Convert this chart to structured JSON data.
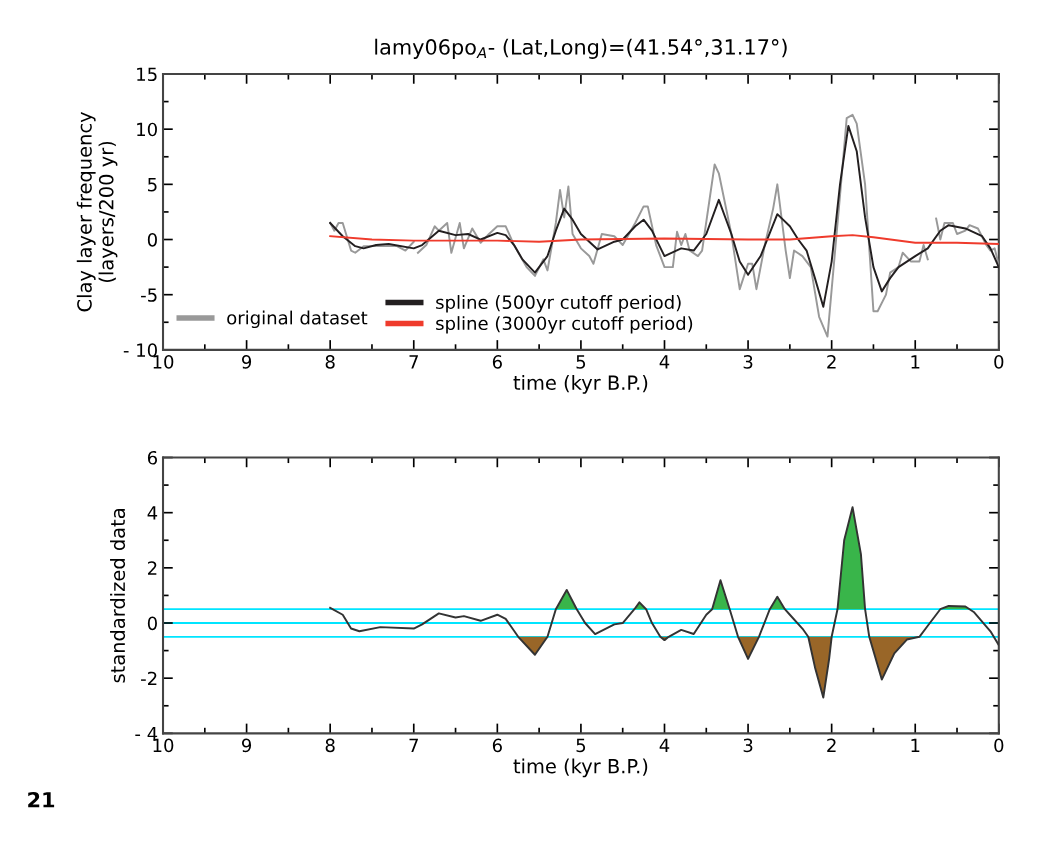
{
  "chart_data": [
    {
      "type": "line",
      "title": "lamy06po$_{A}$- (Lat,Long)=(41.54°,31.17°)",
      "xlabel": "time (kyr B.P.)",
      "ylabel": "Clay layer frequency\n(layers/200 yr)",
      "xlim": [
        10,
        0
      ],
      "xticks": [
        10,
        9,
        8,
        7,
        6,
        5,
        4,
        3,
        2,
        1,
        0,
        {
          "value": 9.5,
          "label": null
        },
        {
          "value": 8.5,
          "label": null
        },
        {
          "value": 7.5,
          "label": null
        },
        {
          "value": 6.5,
          "label": null
        },
        {
          "value": 5.5,
          "label": null
        },
        {
          "value": 4.5,
          "label": null
        },
        {
          "value": 3.5,
          "label": null
        },
        {
          "value": 2.5,
          "label": null
        },
        {
          "value": 1.5,
          "label": null
        },
        {
          "value": 0.5,
          "label": null
        }
      ],
      "ylim": [
        -10,
        15
      ],
      "yticks": [
        {
          "value": -10,
          "label": "- 10"
        },
        -5,
        0,
        5,
        10,
        15,
        {
          "value": -7.5,
          "label": null
        },
        {
          "value": -2.5,
          "label": null
        },
        {
          "value": 2.5,
          "label": null
        },
        {
          "value": 7.5,
          "label": null
        },
        {
          "value": 12.5,
          "label": null
        }
      ],
      "grid": false,
      "legend": "bottom left",
      "series": [
        {
          "name": "original dataset",
          "color": "#999999",
          "x": [
            8.0,
            7.95,
            7.9,
            7.85,
            7.75,
            7.7,
            7.6,
            7.4,
            7.2,
            7.1,
            7.0,
            6.97,
            6.95,
            6.85,
            6.75,
            6.7,
            6.6,
            6.55,
            6.45,
            6.4,
            6.3,
            6.2,
            6.1,
            6.0,
            5.9,
            5.8,
            5.65,
            5.55,
            5.45,
            5.4,
            5.3,
            5.25,
            5.2,
            5.15,
            5.1,
            5.0,
            4.9,
            4.85,
            4.75,
            4.6,
            4.5,
            4.35,
            4.25,
            4.2,
            4.1,
            4.0,
            3.9,
            3.85,
            3.8,
            3.75,
            3.7,
            3.6,
            3.55,
            3.4,
            3.35,
            3.2,
            3.1,
            3.0,
            2.95,
            2.9,
            2.8,
            2.7,
            2.65,
            2.55,
            2.5,
            2.45,
            2.35,
            2.25,
            2.15,
            2.05,
            1.9,
            1.82,
            1.75,
            1.7,
            1.6,
            1.5,
            1.45,
            1.35,
            1.3,
            1.2,
            1.15,
            1.05,
            0.95,
            0.9,
            0.85,
            0.8,
            0.75,
            0.7,
            0.65,
            0.55,
            0.5,
            0.4,
            0.35,
            0.25,
            0.15,
            0.1,
            0.05,
            0.0
          ],
          "values": [
            1.5,
            0.8,
            1.5,
            1.5,
            -1.0,
            -1.2,
            -0.6,
            -0.6,
            -0.6,
            -1.0,
            -0.2,
            null,
            -1.2,
            -0.5,
            1.2,
            0.8,
            1.5,
            -1.2,
            1.5,
            -0.8,
            1.0,
            -0.3,
            0.5,
            1.2,
            1.2,
            -0.5,
            -2.5,
            -3.3,
            -1.8,
            -2.8,
            1.5,
            4.5,
            2.0,
            4.8,
            0.5,
            -0.8,
            -1.5,
            -2.2,
            0.5,
            0.3,
            -0.5,
            1.5,
            3.0,
            3.0,
            -0.5,
            -2.5,
            -2.5,
            0.7,
            -0.5,
            0.5,
            -1.0,
            -1.5,
            -1.0,
            6.8,
            6.0,
            0.5,
            -4.5,
            -2.2,
            -2.2,
            -4.5,
            -0.5,
            2.8,
            5.0,
            -1.0,
            -3.5,
            -1.0,
            -1.5,
            -2.5,
            -7.0,
            -8.8,
            4.0,
            11.0,
            11.3,
            10.5,
            5.0,
            -6.5,
            -6.5,
            -5.0,
            -3.0,
            -2.5,
            -1.2,
            -2.0,
            -2.0,
            -0.5,
            -1.8,
            null,
            1.9,
            0.0,
            1.5,
            1.5,
            0.5,
            0.8,
            1.3,
            1.0,
            -0.5,
            -1.0,
            -0.8,
            -2.3
          ]
        },
        {
          "name": "spline (500yr cutoff period)",
          "color": "#231f20",
          "x": [
            8.0,
            7.85,
            7.7,
            7.6,
            7.45,
            7.3,
            7.0,
            6.9,
            6.7,
            6.5,
            6.35,
            6.2,
            6.0,
            5.9,
            5.8,
            5.7,
            5.55,
            5.4,
            5.3,
            5.2,
            5.1,
            5.0,
            4.8,
            4.6,
            4.5,
            4.35,
            4.25,
            4.15,
            4.0,
            3.8,
            3.65,
            3.5,
            3.35,
            3.2,
            3.1,
            3.0,
            2.85,
            2.65,
            2.5,
            2.4,
            2.3,
            2.2,
            2.1,
            2.0,
            1.9,
            1.8,
            1.7,
            1.6,
            1.5,
            1.4,
            1.3,
            1.2,
            1.0,
            0.85,
            0.7,
            0.6,
            0.4,
            0.2,
            0.1,
            0.0
          ],
          "values": [
            1.5,
            0.3,
            -0.6,
            -0.8,
            -0.5,
            -0.4,
            -0.8,
            -0.5,
            0.8,
            0.4,
            0.5,
            0.0,
            0.6,
            0.4,
            -0.5,
            -1.8,
            -3.0,
            -1.5,
            0.8,
            2.8,
            1.8,
            0.5,
            -0.9,
            -0.2,
            0.0,
            1.2,
            1.8,
            0.8,
            -1.5,
            -0.8,
            -1.0,
            0.5,
            3.6,
            0.5,
            -2.0,
            -3.2,
            -1.5,
            2.3,
            1.2,
            0.0,
            -1.0,
            -3.5,
            -6.1,
            -2.0,
            5.0,
            10.3,
            8.0,
            2.0,
            -2.5,
            -4.7,
            -3.5,
            -2.5,
            -1.5,
            -0.8,
            0.8,
            1.3,
            1.0,
            0.3,
            -0.8,
            -2.5
          ]
        },
        {
          "name": "spline (3000yr cutoff period)",
          "color": "#ef3b2c",
          "x": [
            8.0,
            7.5,
            7.0,
            6.0,
            5.5,
            5.0,
            4.0,
            3.0,
            2.5,
            2.0,
            1.75,
            1.5,
            1.0,
            0.5,
            0.0
          ],
          "values": [
            0.3,
            0.0,
            -0.1,
            -0.1,
            -0.2,
            0.0,
            0.1,
            0.0,
            0.0,
            0.3,
            0.4,
            0.2,
            -0.3,
            -0.3,
            -0.4
          ]
        }
      ]
    },
    {
      "type": "line",
      "xlabel": "time (kyr B.P.)",
      "ylabel": "standardized data",
      "xlim": [
        10,
        0
      ],
      "xticks": [
        10,
        9,
        8,
        7,
        6,
        5,
        4,
        3,
        2,
        1,
        0,
        {
          "value": 9.5,
          "label": null
        },
        {
          "value": 8.5,
          "label": null
        },
        {
          "value": 7.5,
          "label": null
        },
        {
          "value": 6.5,
          "label": null
        },
        {
          "value": 5.5,
          "label": null
        },
        {
          "value": 4.5,
          "label": null
        },
        {
          "value": 3.5,
          "label": null
        },
        {
          "value": 2.5,
          "label": null
        },
        {
          "value": 1.5,
          "label": null
        },
        {
          "value": 0.5,
          "label": null
        }
      ],
      "ylim": [
        -4,
        6
      ],
      "yticks": [
        {
          "value": -4,
          "label": "- 4"
        },
        -2,
        0,
        2,
        4,
        6,
        {
          "value": -3,
          "label": null
        },
        {
          "value": -1,
          "label": null
        },
        {
          "value": 1,
          "label": null
        },
        {
          "value": 3,
          "label": null
        },
        {
          "value": 5,
          "label": null
        }
      ],
      "grid": false,
      "ref_lines": [
        {
          "axis": "y",
          "value": 0.5,
          "color": "#00e5ff"
        },
        {
          "axis": "y",
          "value": 0,
          "color": "#00e5ff"
        },
        {
          "axis": "y",
          "value": -0.5,
          "color": "#00e5ff"
        }
      ],
      "annotations": [
        "21"
      ],
      "series": [
        {
          "type": "area",
          "color": "#39b54a",
          "x": [
            5.3,
            5.17,
            5.05,
            null,
            4.36,
            4.3,
            4.22,
            null,
            3.43,
            3.33,
            3.22,
            null,
            2.74,
            2.65,
            2.56,
            null,
            1.93,
            1.85,
            1.75,
            1.65,
            1.6,
            null,
            0.7,
            0.6,
            0.4,
            0.35
          ],
          "values": [
            0.5,
            1.2,
            0.5,
            null,
            0.5,
            0.75,
            0.5,
            null,
            0.5,
            1.55,
            0.5,
            null,
            0.5,
            0.95,
            0.5,
            null,
            0.5,
            3.0,
            4.2,
            2.5,
            0.5,
            null,
            0.5,
            0.62,
            0.6,
            0.5
          ]
        },
        {
          "type": "area",
          "color": "#996628",
          "x": [
            5.75,
            5.55,
            5.4,
            null,
            4.05,
            4.0,
            3.95,
            null,
            3.12,
            3.0,
            2.87,
            null,
            2.28,
            2.2,
            2.1,
            2.03,
            2.0,
            null,
            1.55,
            1.4,
            1.25,
            1.1,
            0.95
          ],
          "values": [
            -0.5,
            -1.15,
            -0.5,
            null,
            -0.5,
            -0.62,
            -0.5,
            null,
            -0.5,
            -1.3,
            -0.5,
            null,
            -0.5,
            -1.6,
            -2.7,
            -1.3,
            -0.5,
            null,
            -0.5,
            -2.05,
            -1.1,
            -0.6,
            -0.5
          ]
        },
        {
          "color": "#333333",
          "x": [
            8.0,
            7.85,
            7.75,
            7.65,
            7.4,
            7.0,
            6.9,
            6.7,
            6.5,
            6.4,
            6.2,
            6.0,
            5.9,
            5.75,
            5.55,
            5.4,
            5.3,
            5.17,
            5.05,
            4.95,
            4.83,
            4.6,
            4.5,
            4.36,
            4.3,
            4.22,
            4.15,
            4.05,
            4.0,
            3.95,
            3.8,
            3.65,
            3.5,
            3.43,
            3.33,
            3.22,
            3.12,
            3.0,
            2.87,
            2.74,
            2.65,
            2.56,
            2.5,
            2.35,
            2.28,
            2.2,
            2.1,
            2.03,
            2.0,
            1.93,
            1.85,
            1.75,
            1.65,
            1.6,
            1.55,
            1.4,
            1.25,
            1.1,
            0.95,
            0.85,
            0.7,
            0.6,
            0.4,
            0.35,
            0.3,
            0.1,
            0.0
          ],
          "values": [
            0.55,
            0.3,
            -0.2,
            -0.3,
            -0.15,
            -0.2,
            -0.05,
            0.35,
            0.2,
            0.25,
            0.08,
            0.3,
            0.15,
            -0.5,
            -1.15,
            -0.5,
            0.5,
            1.2,
            0.5,
            0.0,
            -0.4,
            -0.05,
            0.0,
            0.5,
            0.75,
            0.5,
            0.0,
            -0.5,
            -0.62,
            -0.5,
            -0.25,
            -0.4,
            0.3,
            0.5,
            1.55,
            0.5,
            -0.5,
            -1.3,
            -0.5,
            0.5,
            0.95,
            0.5,
            0.3,
            -0.2,
            -0.5,
            -1.6,
            -2.7,
            -1.3,
            -0.5,
            0.5,
            3.0,
            4.2,
            2.5,
            0.5,
            -0.5,
            -2.05,
            -1.1,
            -0.6,
            -0.5,
            -0.1,
            0.5,
            0.62,
            0.6,
            0.5,
            0.4,
            -0.3,
            -0.8
          ]
        }
      ]
    }
  ]
}
